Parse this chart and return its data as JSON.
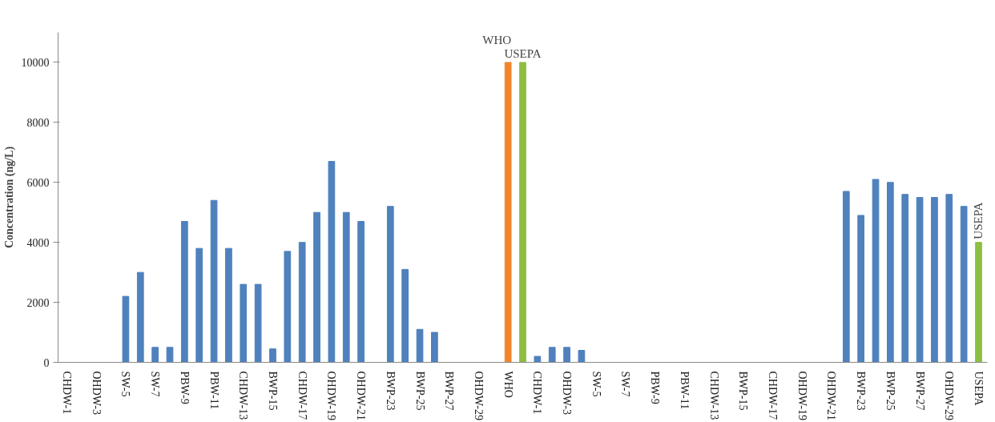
{
  "chart_data": {
    "type": "bar",
    "ylabel": "Concentration (ng/L)",
    "categories": [
      "CHDW-1",
      null,
      "OHDW-3",
      null,
      "SW-5",
      null,
      "SW-7",
      null,
      "PBW-9",
      null,
      "PBW-11",
      null,
      "CHDW-13",
      null,
      "BWP-15",
      null,
      "CHDW-17",
      null,
      "OHDW-19",
      null,
      "OHDW-21",
      null,
      "BWP-23",
      null,
      "BWP-25",
      null,
      "BWP-27",
      null,
      "OHDW-29",
      null,
      "WHO",
      null,
      "CHDW-1",
      null,
      "OHDW-3",
      null,
      "SW-5",
      null,
      "SW-7",
      null,
      "PBW-9",
      null,
      "PBW-11",
      null,
      "CHDW-13",
      null,
      "BWP-15",
      null,
      "CHDW-17",
      null,
      "OHDW-19",
      null,
      "OHDW-21",
      null,
      "BWP-23",
      null,
      "BWP-25",
      null,
      "BWP-27",
      null,
      "OHDW-29",
      null,
      "USEPA"
    ],
    "values": [
      0,
      0,
      0,
      0,
      2200,
      3000,
      500,
      500,
      4700,
      3800,
      5400,
      3800,
      2600,
      2600,
      450,
      3700,
      4000,
      5000,
      6700,
      5000,
      4700,
      0,
      5200,
      3100,
      1100,
      1000,
      0,
      0,
      0,
      0,
      10000,
      10000,
      200,
      500,
      500,
      400,
      0,
      0,
      0,
      0,
      0,
      0,
      0,
      0,
      0,
      0,
      0,
      0,
      0,
      0,
      0,
      0,
      0,
      5700,
      4900,
      6100,
      6000,
      5600,
      5500,
      5500,
      5600,
      5200,
      4000
    ],
    "colors": [
      "#4f81bd",
      "#4f81bd",
      "#4f81bd",
      "#4f81bd",
      "#4f81bd",
      "#4f81bd",
      "#4f81bd",
      "#4f81bd",
      "#4f81bd",
      "#4f81bd",
      "#4f81bd",
      "#4f81bd",
      "#4f81bd",
      "#4f81bd",
      "#4f81bd",
      "#4f81bd",
      "#4f81bd",
      "#4f81bd",
      "#4f81bd",
      "#4f81bd",
      "#4f81bd",
      "#4f81bd",
      "#4f81bd",
      "#4f81bd",
      "#4f81bd",
      "#4f81bd",
      "#4f81bd",
      "#4f81bd",
      "#4f81bd",
      "#4f81bd",
      "#f0852d",
      "#8cbf3f",
      "#4f81bd",
      "#4f81bd",
      "#4f81bd",
      "#4f81bd",
      "#4f81bd",
      "#4f81bd",
      "#4f81bd",
      "#4f81bd",
      "#4f81bd",
      "#4f81bd",
      "#4f81bd",
      "#4f81bd",
      "#4f81bd",
      "#4f81bd",
      "#4f81bd",
      "#4f81bd",
      "#4f81bd",
      "#4f81bd",
      "#4f81bd",
      "#4f81bd",
      "#4f81bd",
      "#4f81bd",
      "#4f81bd",
      "#4f81bd",
      "#4f81bd",
      "#4f81bd",
      "#4f81bd",
      "#4f81bd",
      "#4f81bd",
      "#4f81bd",
      "#8cbf3f"
    ],
    "value_labels": [
      null,
      null,
      null,
      null,
      null,
      null,
      null,
      null,
      null,
      null,
      null,
      null,
      null,
      null,
      null,
      null,
      null,
      null,
      null,
      null,
      null,
      null,
      null,
      null,
      null,
      null,
      null,
      null,
      null,
      null,
      "WHO",
      "USEPA",
      null,
      null,
      null,
      null,
      null,
      null,
      null,
      null,
      null,
      null,
      null,
      null,
      null,
      null,
      null,
      null,
      null,
      null,
      null,
      null,
      null,
      null,
      null,
      null,
      null,
      null,
      null,
      null,
      null,
      null,
      "USEPA"
    ],
    "ylim": [
      0,
      11000
    ],
    "yticks": [
      0,
      2000,
      4000,
      6000,
      8000,
      10000
    ],
    "grid": false
  }
}
